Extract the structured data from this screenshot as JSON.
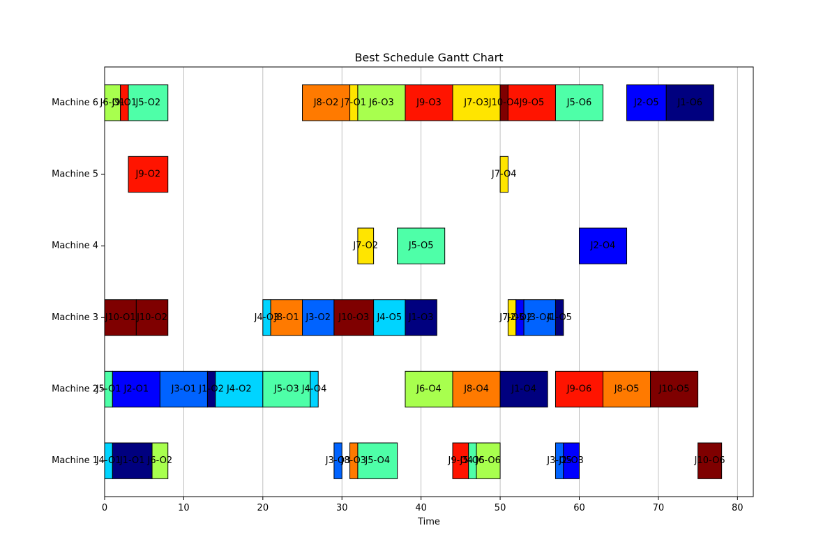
{
  "chart_data": {
    "type": "gantt",
    "title": "Best Schedule Gantt Chart",
    "xlabel": "Time",
    "ylabel": "",
    "xlim": [
      0,
      82
    ],
    "xticks": [
      0,
      10,
      20,
      30,
      40,
      50,
      60,
      70,
      80
    ],
    "grid": "x",
    "machines": [
      "Machine 1",
      "Machine 2",
      "Machine 3",
      "Machine 4",
      "Machine 5",
      "Machine 6"
    ],
    "job_colors": {
      "J1": "#00007f",
      "J2": "#0000ff",
      "J3": "#0063ff",
      "J4": "#00d4ff",
      "J5": "#4effa8",
      "J6": "#a8ff4e",
      "J7": "#ffe500",
      "J8": "#ff7a00",
      "J9": "#ff1400",
      "J10": "#7f0000"
    },
    "tasks": [
      {
        "machine": "Machine 1",
        "label": "J4-O1",
        "job": "J4",
        "start": 0,
        "end": 1
      },
      {
        "machine": "Machine 1",
        "label": "J1-O1",
        "job": "J1",
        "start": 1,
        "end": 6
      },
      {
        "machine": "Machine 1",
        "label": "J6-O2",
        "job": "J6",
        "start": 6,
        "end": 8
      },
      {
        "machine": "Machine 1",
        "label": "J3-O3",
        "job": "J3",
        "start": 29,
        "end": 30
      },
      {
        "machine": "Machine 1",
        "label": "J8-O3",
        "job": "J8",
        "start": 31,
        "end": 32
      },
      {
        "machine": "Machine 1",
        "label": "J5-O4",
        "job": "J5",
        "start": 32,
        "end": 37
      },
      {
        "machine": "Machine 1",
        "label": "J9-O4",
        "job": "J9",
        "start": 44,
        "end": 46
      },
      {
        "machine": "Machine 1",
        "label": "J5-O5",
        "job": "J5",
        "start": 46,
        "end": 47
      },
      {
        "machine": "Machine 1",
        "label": "J6-O6",
        "job": "J6",
        "start": 47,
        "end": 50
      },
      {
        "machine": "Machine 1",
        "label": "J3-O5",
        "job": "J3",
        "start": 57,
        "end": 58
      },
      {
        "machine": "Machine 1",
        "label": "J2-O3",
        "job": "J2",
        "start": 58,
        "end": 60
      },
      {
        "machine": "Machine 1",
        "label": "J10-O6",
        "job": "J10",
        "start": 75,
        "end": 78
      },
      {
        "machine": "Machine 2",
        "label": "J5-O1",
        "job": "J5",
        "start": 0,
        "end": 1
      },
      {
        "machine": "Machine 2",
        "label": "J2-O1",
        "job": "J2",
        "start": 1,
        "end": 7
      },
      {
        "machine": "Machine 2",
        "label": "J3-O1",
        "job": "J3",
        "start": 7,
        "end": 13
      },
      {
        "machine": "Machine 2",
        "label": "J1-O2",
        "job": "J1",
        "start": 13,
        "end": 14
      },
      {
        "machine": "Machine 2",
        "label": "J4-O2",
        "job": "J4",
        "start": 14,
        "end": 20
      },
      {
        "machine": "Machine 2",
        "label": "J5-O3",
        "job": "J5",
        "start": 20,
        "end": 26
      },
      {
        "machine": "Machine 2",
        "label": "J4-O4",
        "job": "J4",
        "start": 26,
        "end": 27
      },
      {
        "machine": "Machine 2",
        "label": "J6-O4",
        "job": "J6",
        "start": 38,
        "end": 44
      },
      {
        "machine": "Machine 2",
        "label": "J8-O4",
        "job": "J8",
        "start": 44,
        "end": 50
      },
      {
        "machine": "Machine 2",
        "label": "J1-O4",
        "job": "J1",
        "start": 50,
        "end": 56
      },
      {
        "machine": "Machine 2",
        "label": "J9-O6",
        "job": "J9",
        "start": 57,
        "end": 63
      },
      {
        "machine": "Machine 2",
        "label": "J8-O5",
        "job": "J8",
        "start": 63,
        "end": 69
      },
      {
        "machine": "Machine 2",
        "label": "J10-O5",
        "job": "J10",
        "start": 69,
        "end": 75
      },
      {
        "machine": "Machine 3",
        "label": "J10-O1",
        "job": "J10",
        "start": 0,
        "end": 4
      },
      {
        "machine": "Machine 3",
        "label": "J10-O2",
        "job": "J10",
        "start": 4,
        "end": 8
      },
      {
        "machine": "Machine 3",
        "label": "J4-O3",
        "job": "J4",
        "start": 20,
        "end": 21
      },
      {
        "machine": "Machine 3",
        "label": "J8-O1",
        "job": "J8",
        "start": 21,
        "end": 25
      },
      {
        "machine": "Machine 3",
        "label": "J3-O2",
        "job": "J3",
        "start": 25,
        "end": 29
      },
      {
        "machine": "Machine 3",
        "label": "J10-O3",
        "job": "J10",
        "start": 29,
        "end": 34
      },
      {
        "machine": "Machine 3",
        "label": "J4-O5",
        "job": "J4",
        "start": 34,
        "end": 38
      },
      {
        "machine": "Machine 3",
        "label": "J1-O3",
        "job": "J1",
        "start": 38,
        "end": 42
      },
      {
        "machine": "Machine 3",
        "label": "J7-O5",
        "job": "J7",
        "start": 51,
        "end": 52
      },
      {
        "machine": "Machine 3",
        "label": "J2-O2",
        "job": "J2",
        "start": 52,
        "end": 53
      },
      {
        "machine": "Machine 3",
        "label": "J3-O4",
        "job": "J3",
        "start": 53,
        "end": 57
      },
      {
        "machine": "Machine 3",
        "label": "J1-O5",
        "job": "J1",
        "start": 57,
        "end": 58
      },
      {
        "machine": "Machine 4",
        "label": "J7-O2",
        "job": "J7",
        "start": 32,
        "end": 34
      },
      {
        "machine": "Machine 4",
        "label": "J5-O5",
        "job": "J5",
        "start": 37,
        "end": 43
      },
      {
        "machine": "Machine 4",
        "label": "J2-O4",
        "job": "J2",
        "start": 60,
        "end": 66
      },
      {
        "machine": "Machine 5",
        "label": "J9-O2",
        "job": "J9",
        "start": 3,
        "end": 8
      },
      {
        "machine": "Machine 5",
        "label": "J7-O4",
        "job": "J7",
        "start": 50,
        "end": 51
      },
      {
        "machine": "Machine 6",
        "label": "J6-O1",
        "job": "J6",
        "start": 0,
        "end": 2
      },
      {
        "machine": "Machine 6",
        "label": "J9-O1",
        "job": "J9",
        "start": 2,
        "end": 3
      },
      {
        "machine": "Machine 6",
        "label": "J5-O2",
        "job": "J5",
        "start": 3,
        "end": 8
      },
      {
        "machine": "Machine 6",
        "label": "J8-O2",
        "job": "J8",
        "start": 25,
        "end": 31
      },
      {
        "machine": "Machine 6",
        "label": "J7-O1",
        "job": "J7",
        "start": 31,
        "end": 32
      },
      {
        "machine": "Machine 6",
        "label": "J6-O3",
        "job": "J6",
        "start": 32,
        "end": 38
      },
      {
        "machine": "Machine 6",
        "label": "J9-O3",
        "job": "J9",
        "start": 38,
        "end": 44
      },
      {
        "machine": "Machine 6",
        "label": "J7-O3",
        "job": "J7",
        "start": 44,
        "end": 50
      },
      {
        "machine": "Machine 6",
        "label": "J10-O4",
        "job": "J10",
        "start": 50,
        "end": 51
      },
      {
        "machine": "Machine 6",
        "label": "J9-O5",
        "job": "J9",
        "start": 51,
        "end": 57
      },
      {
        "machine": "Machine 6",
        "label": "J5-O6",
        "job": "J5",
        "start": 57,
        "end": 63
      },
      {
        "machine": "Machine 6",
        "label": "J2-O5",
        "job": "J2",
        "start": 66,
        "end": 71
      },
      {
        "machine": "Machine 6",
        "label": "J1-O6",
        "job": "J1",
        "start": 71,
        "end": 77
      }
    ]
  }
}
